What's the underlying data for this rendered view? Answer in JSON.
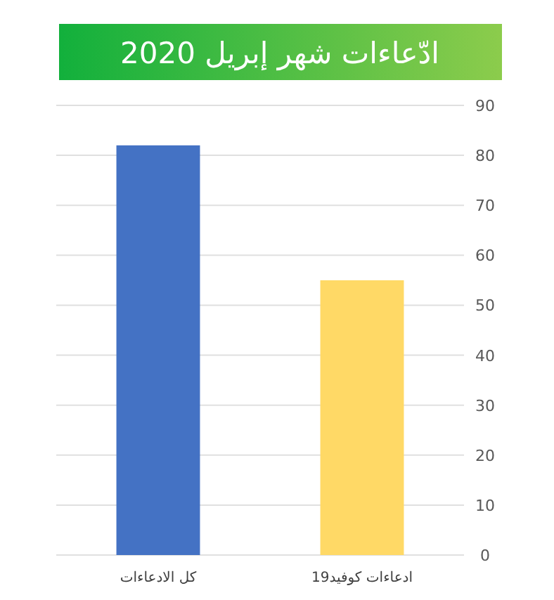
{
  "chart_data": {
    "type": "bar",
    "title": "ادّعاءات شهر إبريل 2020",
    "categories": [
      "كل الادعاءات",
      "ادعاءات كوفيد19"
    ],
    "values": [
      82,
      55
    ],
    "colors": [
      "#4472c4",
      "#ffd966"
    ],
    "ylim": [
      0,
      90
    ],
    "yticks": [
      0,
      10,
      20,
      30,
      40,
      50,
      60,
      70,
      80,
      90
    ],
    "grid": "y"
  }
}
